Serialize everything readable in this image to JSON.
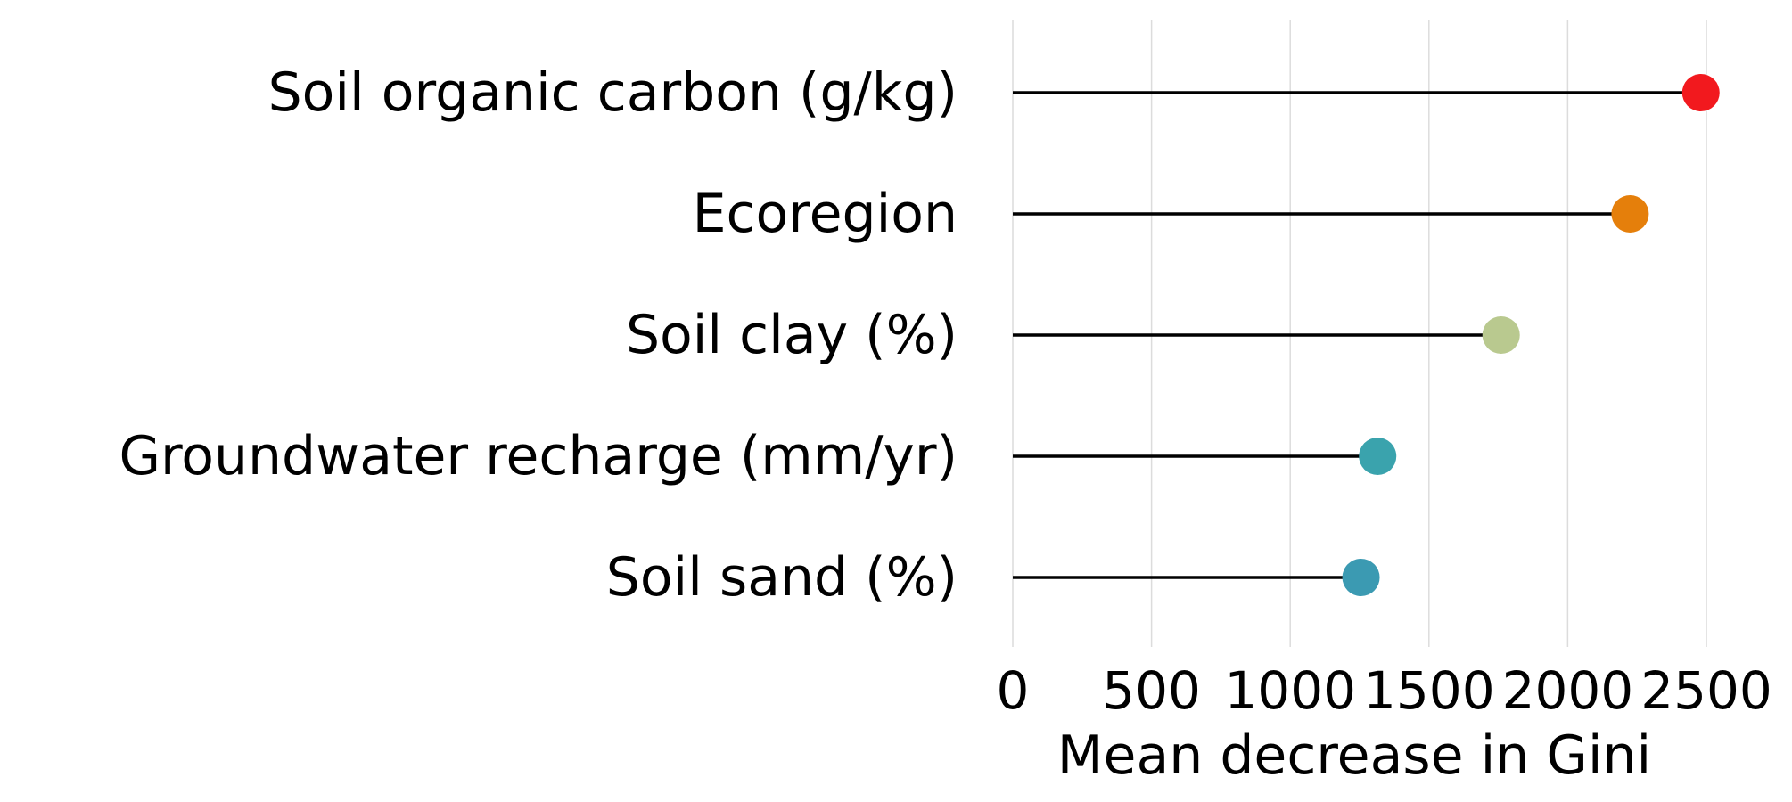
{
  "chart_data": {
    "type": "lollipop",
    "title": "",
    "xlabel": "Mean decrease in Gini",
    "ylabel": "",
    "xlim": [
      0,
      2500
    ],
    "xticks": [
      0,
      500,
      1000,
      1500,
      2000,
      2500
    ],
    "tick_labels": [
      "0",
      "500",
      "1000",
      "1500",
      "2000",
      "2500"
    ],
    "grid": "vertical",
    "categories": [
      "Soil organic carbon (g/kg)",
      "Ecoregion",
      "Soil clay (%)",
      "Groundwater recharge (mm/yr)",
      "Soil sand (%)"
    ],
    "values": [
      2480,
      2225,
      1760,
      1315,
      1255
    ],
    "colors": [
      "#f2191e",
      "#e57f0b",
      "#b9c98f",
      "#3aa3ad",
      "#3b9ab2"
    ]
  }
}
